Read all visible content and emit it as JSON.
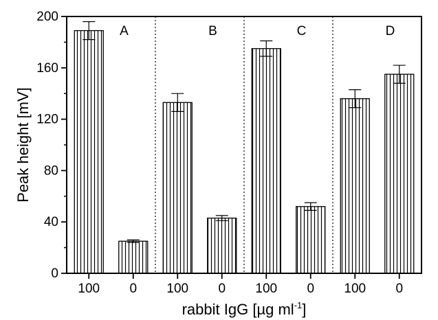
{
  "chart_data": {
    "type": "bar",
    "ylabel": "Peak height [mV]",
    "xlabel": {
      "main": "rabbit IgG [µg ml",
      "superscript": "-1",
      "suffix": "]"
    },
    "ylim": [
      0,
      200
    ],
    "yticks": [
      0,
      40,
      80,
      120,
      160,
      200
    ],
    "groups": [
      "A",
      "B",
      "C",
      "D"
    ],
    "categories": [
      "100",
      "0",
      "100",
      "0",
      "100",
      "0",
      "100",
      "0"
    ],
    "values": [
      189,
      25,
      133,
      43,
      175,
      52,
      136,
      155
    ],
    "errors": [
      7,
      1,
      7,
      2,
      6,
      3,
      7,
      7
    ],
    "bar_pattern": "vertical-hatch",
    "group_separator": "dotted",
    "grid": false
  }
}
